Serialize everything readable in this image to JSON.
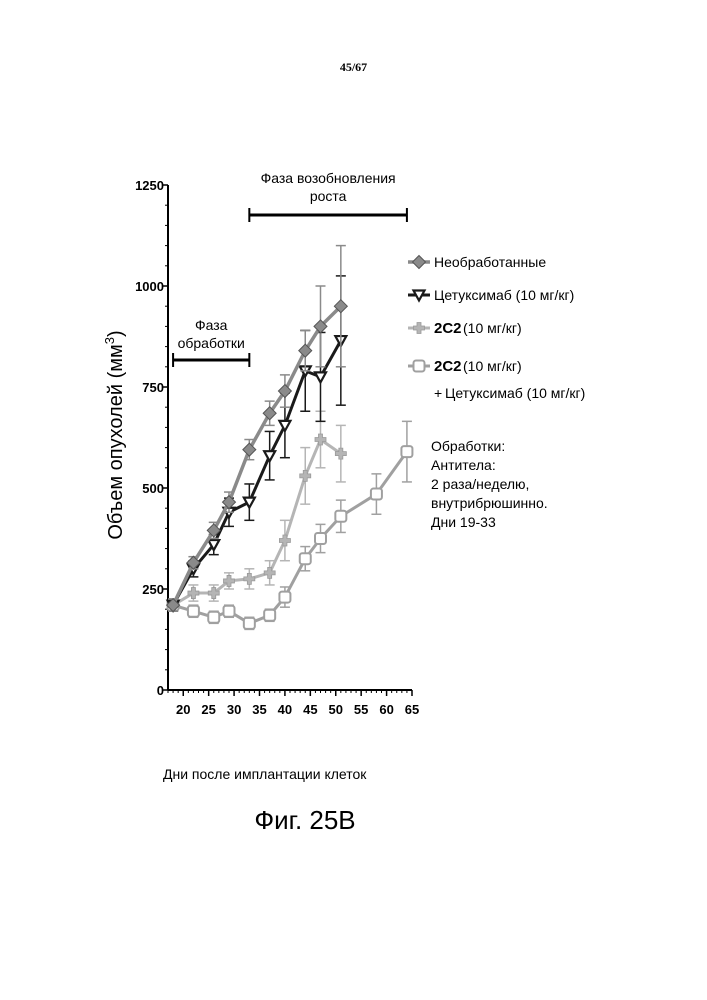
{
  "page": {
    "number": "45/67",
    "caption": "Фиг. 25В"
  },
  "chart_data": {
    "type": "line",
    "title": "",
    "xlabel": "Дни после имплантации клеток",
    "ylabel": "Объем опухолей (мм",
    "ylabel_sup": "3",
    "ylabel_end": ")",
    "xlim": [
      17,
      65
    ],
    "ylim": [
      0,
      1250
    ],
    "xticks": [
      "20",
      "25",
      "30",
      "35",
      "40",
      "45",
      "50",
      "55",
      "60",
      "65"
    ],
    "yticks": [
      "0",
      "250",
      "500",
      "750",
      "1000",
      "1250"
    ],
    "phases": [
      {
        "label_lines": [
          "Фаза",
          "обработки"
        ],
        "x_start": 18,
        "x_end": 33
      },
      {
        "label_lines": [
          "Фаза возобновления",
          "роста"
        ],
        "x_start": 33,
        "x_end": 64
      }
    ],
    "series": [
      {
        "name": "Необработанные",
        "color": "#8a8a8a",
        "marker": "diamond",
        "lineWidth": 3.5,
        "x": [
          18,
          22,
          26,
          29,
          33,
          37,
          40,
          44,
          47,
          51
        ],
        "y": [
          210,
          315,
          395,
          465,
          595,
          685,
          740,
          840,
          900,
          950
        ],
        "err": [
          15,
          15,
          20,
          25,
          25,
          30,
          40,
          50,
          100,
          150
        ]
      },
      {
        "name": "Цетуксимаб (10 мг/кг)",
        "color": "#1a1a1a",
        "marker": "triangle-down",
        "lineWidth": 3,
        "x": [
          18,
          22,
          26,
          29,
          33,
          37,
          40,
          44,
          47,
          51
        ],
        "y": [
          210,
          300,
          360,
          440,
          465,
          580,
          655,
          790,
          775,
          865
        ],
        "err": [
          15,
          20,
          25,
          35,
          45,
          60,
          80,
          100,
          110,
          160
        ]
      },
      {
        "name_code": "2C2",
        "name": "(10 мг/кг)",
        "color": "#b5b5b5",
        "marker": "cross",
        "lineWidth": 3,
        "x": [
          18,
          22,
          26,
          29,
          33,
          37,
          40,
          44,
          47,
          51
        ],
        "y": [
          210,
          240,
          240,
          270,
          275,
          290,
          370,
          530,
          620,
          585
        ],
        "err": [
          15,
          20,
          20,
          20,
          25,
          30,
          50,
          70,
          70,
          70
        ]
      },
      {
        "name_code": "2C2",
        "name": "(10 мг/кг)",
        "name_line2": "Цетуксимаб (10 мг/кг)",
        "color": "#a0a0a0",
        "marker": "square",
        "lineWidth": 3,
        "x": [
          18,
          22,
          26,
          29,
          33,
          37,
          40,
          44,
          47,
          51,
          58,
          64
        ],
        "y": [
          210,
          195,
          180,
          195,
          165,
          185,
          230,
          325,
          375,
          430,
          485,
          590
        ],
        "err": [
          15,
          15,
          15,
          15,
          15,
          15,
          25,
          30,
          35,
          40,
          50,
          75
        ]
      }
    ],
    "legend_position": "right"
  },
  "notes": {
    "lines": [
      "Обработки:",
      "Антитела:",
      "2 раза/неделю,",
      "внутрибрюшинно.",
      "Дни 19-33"
    ]
  }
}
